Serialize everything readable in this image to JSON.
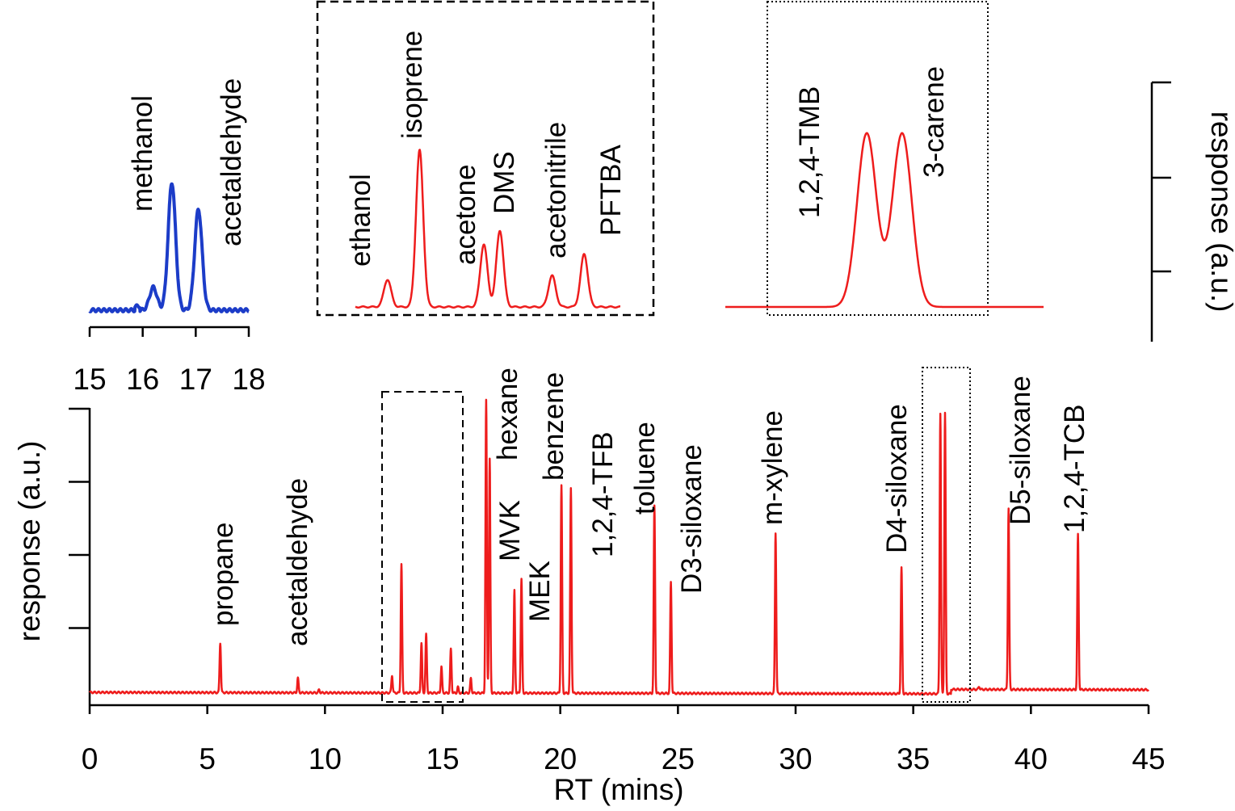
{
  "chart_data": [
    {
      "type": "line",
      "xlabel": "RT (mins)",
      "ylabel": "response (a.u.)",
      "xlim": [
        0,
        45
      ],
      "xticks": [
        "0",
        "5",
        "10",
        "15",
        "20",
        "25",
        "30",
        "35",
        "40",
        "45"
      ],
      "color": "#ee1c1c",
      "baseline": 0.03,
      "peaks": [
        {
          "rt": 5.55,
          "h": 0.17,
          "label": "propane"
        },
        {
          "rt": 8.85,
          "h": 0.05,
          "label": "acetaldehyde"
        },
        {
          "rt": 9.75,
          "h": 0.01,
          "label": ""
        },
        {
          "rt": 12.85,
          "h": 0.06,
          "label": ""
        },
        {
          "rt": 13.25,
          "h": 0.44,
          "label": ""
        },
        {
          "rt": 14.1,
          "h": 0.17,
          "label": ""
        },
        {
          "rt": 14.3,
          "h": 0.2,
          "label": ""
        },
        {
          "rt": 14.95,
          "h": 0.09,
          "label": ""
        },
        {
          "rt": 15.35,
          "h": 0.15,
          "label": ""
        },
        {
          "rt": 15.65,
          "h": 0.02,
          "label": ""
        },
        {
          "rt": 16.2,
          "h": 0.05,
          "label": ""
        },
        {
          "rt": 16.85,
          "h": 1.0,
          "label": ""
        },
        {
          "rt": 17.0,
          "h": 0.8,
          "label": "hexane"
        },
        {
          "rt": 18.05,
          "h": 0.35,
          "label": "MVK"
        },
        {
          "rt": 18.35,
          "h": 0.39,
          "label": "MEK"
        },
        {
          "rt": 20.05,
          "h": 0.71,
          "label": "benzene"
        },
        {
          "rt": 20.45,
          "h": 0.7,
          "label": "1,2,4-TFB"
        },
        {
          "rt": 24.0,
          "h": 0.64,
          "label": "toluene"
        },
        {
          "rt": 24.7,
          "h": 0.38,
          "label": "D3-siloxane"
        },
        {
          "rt": 29.15,
          "h": 0.55,
          "label": "m-xylene"
        },
        {
          "rt": 34.5,
          "h": 0.43,
          "label": "D4-siloxane"
        },
        {
          "rt": 36.15,
          "h": 0.96,
          "label": ""
        },
        {
          "rt": 36.35,
          "h": 0.96,
          "label": ""
        },
        {
          "rt": 37.8,
          "h": 0.01,
          "label": ""
        },
        {
          "rt": 39.05,
          "h": 0.62,
          "label": "D5-siloxane"
        },
        {
          "rt": 42.0,
          "h": 0.53,
          "label": "1,2,4-TCB"
        }
      ]
    },
    {
      "type": "line",
      "xlim": [
        15,
        18
      ],
      "xticks": [
        "15",
        "16",
        "17",
        "18"
      ],
      "color": "#1c3cc8",
      "peaks": [
        {
          "rt": 16.2,
          "h": 0.12,
          "label": ""
        },
        {
          "rt": 16.55,
          "h": 0.67,
          "label": "methanol"
        },
        {
          "rt": 17.05,
          "h": 0.53,
          "label": "acetaldehyde"
        }
      ]
    },
    {
      "type": "line",
      "color": "#ee1c1c",
      "peaks": [
        {
          "rt": 12.9,
          "h": 0.14,
          "label": "ethanol"
        },
        {
          "rt": 13.3,
          "h": 0.8,
          "label": "isoprene"
        },
        {
          "rt": 14.1,
          "h": 0.32,
          "label": "acetone"
        },
        {
          "rt": 14.3,
          "h": 0.39,
          "label": "DMS"
        },
        {
          "rt": 14.95,
          "h": 0.16,
          "label": "acetonitrile"
        },
        {
          "rt": 15.35,
          "h": 0.27,
          "label": "PFTBA"
        }
      ]
    },
    {
      "type": "line",
      "ylabel": "response (a.u.)",
      "color": "#ee1c1c",
      "peaks": [
        {
          "rt": 36.15,
          "h": 0.91,
          "label": "1,2,4-TMB"
        },
        {
          "rt": 36.35,
          "h": 0.91,
          "label": "3-carene"
        }
      ]
    }
  ]
}
